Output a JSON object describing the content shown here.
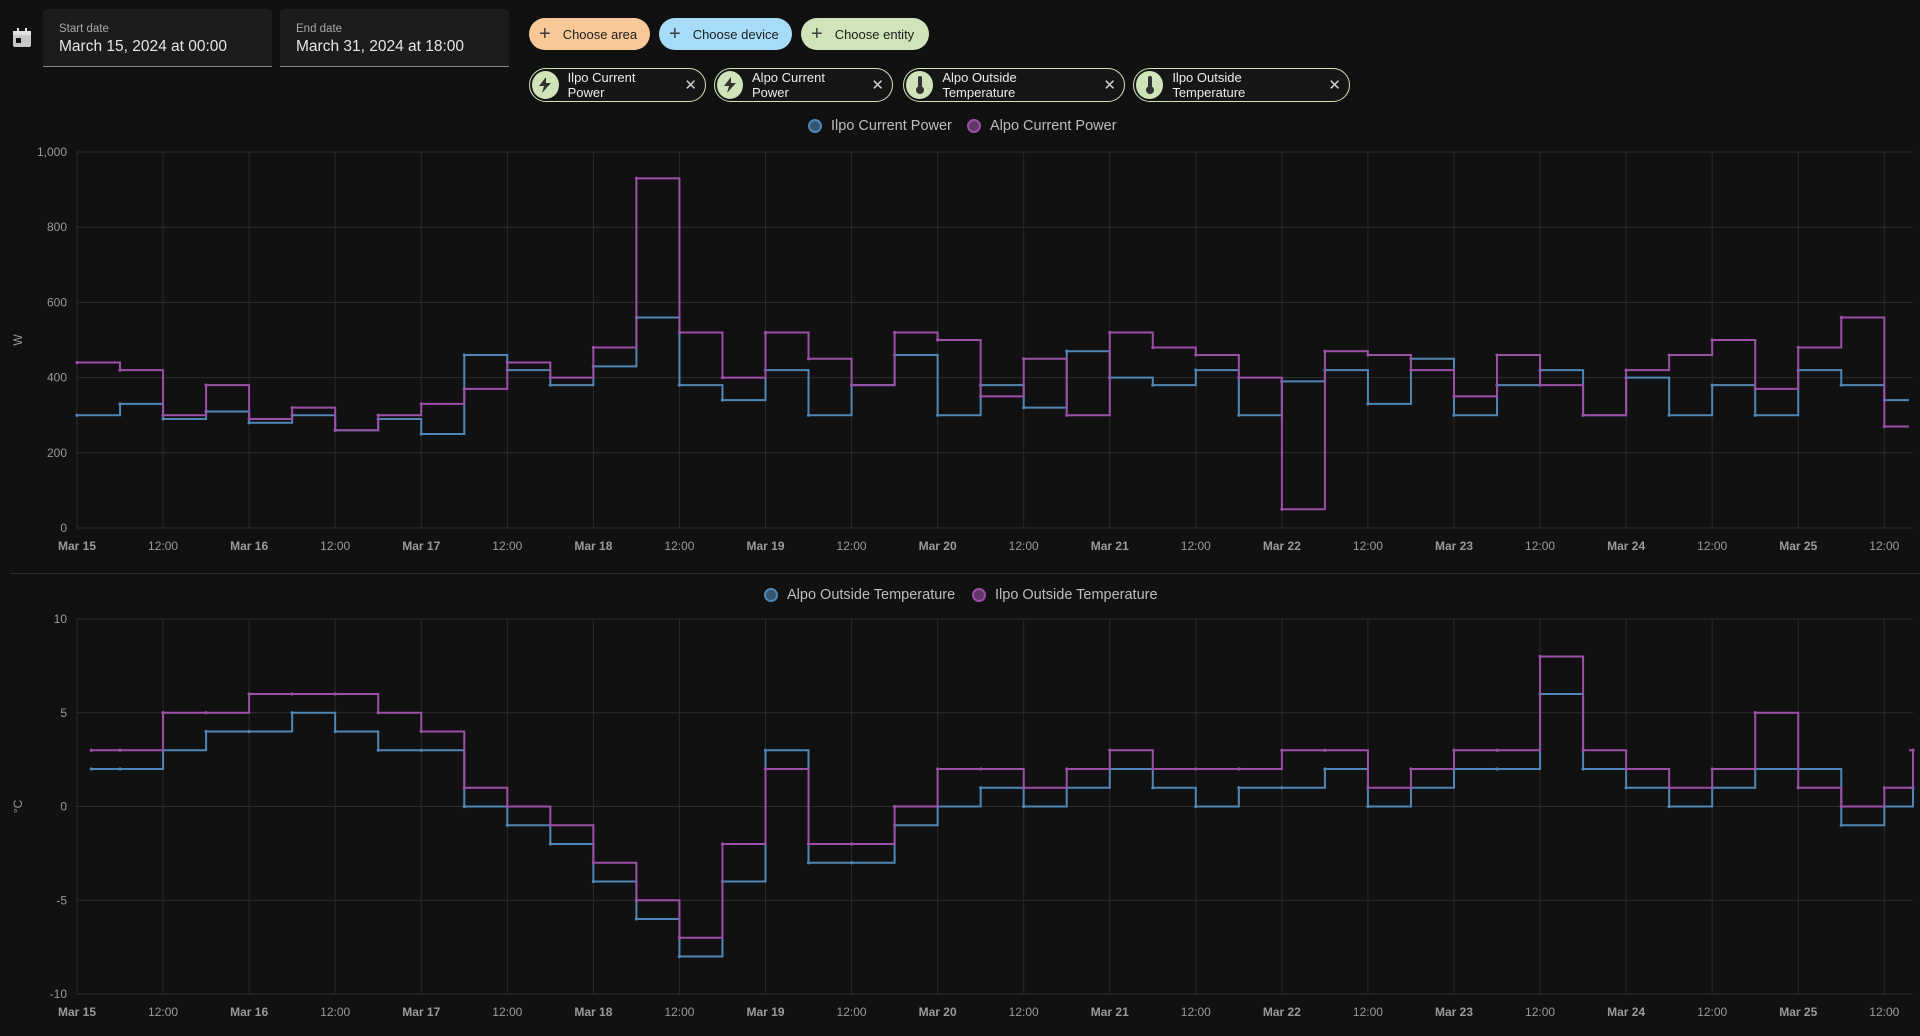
{
  "date_range": {
    "start_label": "Start date",
    "start_value": "March 15, 2024 at 00:00",
    "end_label": "End date",
    "end_value": "March 31, 2024 at 18:00"
  },
  "target_picker": {
    "area_label": "Choose area",
    "device_label": "Choose device",
    "entity_label": "Choose entity",
    "area_color": "#f8c898",
    "device_color": "#a6dcf8",
    "entity_color": "#cfe4b8"
  },
  "selected_entities": [
    {
      "label": "Ilpo Current Power",
      "icon": "lightning-icon"
    },
    {
      "label": "Alpo Current Power",
      "icon": "lightning-icon"
    },
    {
      "label": "Alpo Outside Temperature",
      "icon": "thermometer-icon"
    },
    {
      "label": "Ilpo Outside Temperature",
      "icon": "thermometer-icon"
    }
  ],
  "chart_data": [
    {
      "type": "line",
      "step": true,
      "ylabel": "W",
      "ylim": [
        0,
        1000
      ],
      "y_ticks": [
        "0",
        "200",
        "400",
        "600",
        "800",
        "1,000"
      ],
      "x_ticks": [
        "Mar 15",
        "12:00",
        "Mar 16",
        "12:00",
        "Mar 17",
        "12:00",
        "Mar 18",
        "12:00",
        "Mar 19",
        "12:00",
        "Mar 20",
        "12:00",
        "Mar 21",
        "12:00",
        "Mar 22",
        "12:00",
        "Mar 23",
        "12:00",
        "Mar 24",
        "12:00",
        "Mar 25",
        "12:00"
      ],
      "x_range": [
        "2024-03-15T00:00",
        "2024-03-25T16:00"
      ],
      "grid": true,
      "legend_position": "top-center",
      "series": [
        {
          "name": "Ilpo Current Power",
          "color": "#4f86b5",
          "x": [
            "03-15 00:00",
            "03-15 06:00",
            "03-15 12:00",
            "03-15 18:00",
            "03-16 00:00",
            "03-16 06:00",
            "03-16 12:00",
            "03-16 18:00",
            "03-17 00:00",
            "03-17 06:00",
            "03-17 12:00",
            "03-17 18:00",
            "03-18 00:00",
            "03-18 06:00",
            "03-18 12:00",
            "03-18 18:00",
            "03-19 00:00",
            "03-19 06:00",
            "03-19 12:00",
            "03-19 18:00",
            "03-20 00:00",
            "03-20 06:00",
            "03-20 12:00",
            "03-20 18:00",
            "03-21 00:00",
            "03-21 06:00",
            "03-21 12:00",
            "03-21 18:00",
            "03-22 00:00",
            "03-22 06:00",
            "03-22 12:00",
            "03-22 18:00",
            "03-23 00:00",
            "03-23 06:00",
            "03-23 12:00",
            "03-23 18:00",
            "03-24 00:00",
            "03-24 06:00",
            "03-24 12:00",
            "03-24 18:00",
            "03-25 00:00",
            "03-25 06:00",
            "03-25 12:00"
          ],
          "values": [
            300,
            330,
            290,
            310,
            280,
            300,
            260,
            290,
            250,
            460,
            420,
            380,
            430,
            560,
            380,
            340,
            420,
            300,
            380,
            460,
            300,
            380,
            320,
            470,
            400,
            380,
            420,
            300,
            390,
            420,
            330,
            450,
            300,
            380,
            420,
            300,
            400,
            300,
            380,
            300,
            420,
            380,
            340
          ]
        },
        {
          "name": "Alpo Current Power",
          "color": "#9c4fa6",
          "x": [
            "03-15 00:00",
            "03-15 06:00",
            "03-15 12:00",
            "03-15 18:00",
            "03-16 00:00",
            "03-16 06:00",
            "03-16 12:00",
            "03-16 18:00",
            "03-17 00:00",
            "03-17 06:00",
            "03-17 12:00",
            "03-17 18:00",
            "03-18 00:00",
            "03-18 06:00",
            "03-18 12:00",
            "03-18 18:00",
            "03-19 00:00",
            "03-19 06:00",
            "03-19 12:00",
            "03-19 18:00",
            "03-20 00:00",
            "03-20 06:00",
            "03-20 12:00",
            "03-20 18:00",
            "03-21 00:00",
            "03-21 06:00",
            "03-21 12:00",
            "03-21 18:00",
            "03-22 00:00",
            "03-22 06:00",
            "03-22 12:00",
            "03-22 18:00",
            "03-23 00:00",
            "03-23 06:00",
            "03-23 12:00",
            "03-23 18:00",
            "03-24 00:00",
            "03-24 06:00",
            "03-24 12:00",
            "03-24 18:00",
            "03-25 00:00",
            "03-25 06:00",
            "03-25 12:00"
          ],
          "values": [
            440,
            420,
            300,
            380,
            290,
            320,
            260,
            300,
            330,
            370,
            440,
            400,
            480,
            930,
            520,
            400,
            520,
            450,
            380,
            520,
            500,
            350,
            450,
            300,
            520,
            480,
            460,
            400,
            50,
            470,
            460,
            420,
            350,
            460,
            380,
            300,
            420,
            460,
            500,
            370,
            480,
            560,
            270
          ]
        }
      ]
    },
    {
      "type": "line",
      "step": true,
      "ylabel": "°C",
      "ylim": [
        -10,
        10
      ],
      "y_ticks": [
        "-10",
        "-5",
        "0",
        "5",
        "10"
      ],
      "x_ticks": [
        "Mar 15",
        "12:00",
        "Mar 16",
        "12:00",
        "Mar 17",
        "12:00",
        "Mar 18",
        "12:00",
        "Mar 19",
        "12:00",
        "Mar 20",
        "12:00",
        "Mar 21",
        "12:00",
        "Mar 22",
        "12:00",
        "Mar 23",
        "12:00",
        "Mar 24",
        "12:00",
        "Mar 25",
        "12:00"
      ],
      "x_range": [
        "2024-03-15T00:00",
        "2024-03-25T16:00"
      ],
      "grid": true,
      "legend_position": "top-center",
      "series": [
        {
          "name": "Alpo Outside Temperature",
          "color": "#4f86b5",
          "x": [
            "03-15 02:00",
            "03-15 06:00",
            "03-15 12:00",
            "03-15 18:00",
            "03-16 00:00",
            "03-16 06:00",
            "03-16 12:00",
            "03-16 18:00",
            "03-17 00:00",
            "03-17 06:00",
            "03-17 12:00",
            "03-17 18:00",
            "03-18 00:00",
            "03-18 06:00",
            "03-18 12:00",
            "03-18 18:00",
            "03-19 00:00",
            "03-19 06:00",
            "03-19 12:00",
            "03-19 18:00",
            "03-20 00:00",
            "03-20 06:00",
            "03-20 12:00",
            "03-20 18:00",
            "03-21 00:00",
            "03-21 06:00",
            "03-21 12:00",
            "03-21 18:00",
            "03-22 00:00",
            "03-22 06:00",
            "03-22 12:00",
            "03-22 18:00",
            "03-23 00:00",
            "03-23 06:00",
            "03-23 12:00",
            "03-23 18:00",
            "03-24 00:00",
            "03-24 06:00",
            "03-24 12:00",
            "03-24 18:00",
            "03-25 00:00",
            "03-25 06:00",
            "03-25 12:00",
            "03-25 16:00"
          ],
          "values": [
            2,
            2,
            3,
            4,
            4,
            5,
            4,
            3,
            3,
            0,
            -1,
            -2,
            -4,
            -6,
            -8,
            -4,
            3,
            -3,
            -3,
            -1,
            0,
            1,
            0,
            1,
            2,
            1,
            0,
            1,
            1,
            2,
            0,
            1,
            2,
            2,
            6,
            2,
            1,
            0,
            1,
            2,
            2,
            -1,
            0,
            1
          ]
        },
        {
          "name": "Ilpo Outside Temperature",
          "color": "#9c4fa6",
          "x": [
            "03-15 02:00",
            "03-15 06:00",
            "03-15 12:00",
            "03-15 18:00",
            "03-16 00:00",
            "03-16 06:00",
            "03-16 12:00",
            "03-16 18:00",
            "03-17 00:00",
            "03-17 06:00",
            "03-17 12:00",
            "03-17 18:00",
            "03-18 00:00",
            "03-18 06:00",
            "03-18 12:00",
            "03-18 18:00",
            "03-19 00:00",
            "03-19 06:00",
            "03-19 12:00",
            "03-19 18:00",
            "03-20 00:00",
            "03-20 06:00",
            "03-20 12:00",
            "03-20 18:00",
            "03-21 00:00",
            "03-21 06:00",
            "03-21 12:00",
            "03-21 18:00",
            "03-22 00:00",
            "03-22 06:00",
            "03-22 12:00",
            "03-22 18:00",
            "03-23 00:00",
            "03-23 06:00",
            "03-23 12:00",
            "03-23 18:00",
            "03-24 00:00",
            "03-24 06:00",
            "03-24 12:00",
            "03-24 18:00",
            "03-25 00:00",
            "03-25 06:00",
            "03-25 12:00",
            "03-25 16:00"
          ],
          "values": [
            3,
            3,
            5,
            5,
            6,
            6,
            6,
            5,
            4,
            1,
            0,
            -1,
            -3,
            -5,
            -7,
            -2,
            2,
            -2,
            -2,
            0,
            2,
            2,
            1,
            2,
            3,
            2,
            2,
            2,
            3,
            3,
            1,
            2,
            3,
            3,
            8,
            3,
            2,
            1,
            2,
            5,
            1,
            0,
            1,
            3
          ]
        }
      ]
    }
  ]
}
